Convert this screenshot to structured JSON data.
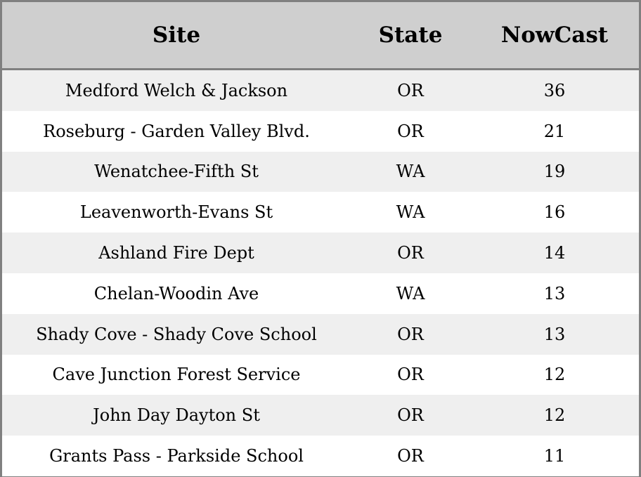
{
  "table": {
    "headers": [
      "Site",
      "State",
      "NowCast"
    ],
    "rows": [
      [
        "Medford Welch & Jackson",
        "OR",
        "36"
      ],
      [
        "Roseburg - Garden Valley Blvd.",
        "OR",
        "21"
      ],
      [
        "Wenatchee-Fifth St",
        "WA",
        "19"
      ],
      [
        "Leavenworth-Evans St",
        "WA",
        "16"
      ],
      [
        "Ashland Fire Dept",
        "OR",
        "14"
      ],
      [
        "Chelan-Woodin Ave",
        "WA",
        "13"
      ],
      [
        "Shady Cove - Shady Cove School",
        "OR",
        "13"
      ],
      [
        "Cave Junction Forest Service",
        "OR",
        "12"
      ],
      [
        "John Day Dayton St",
        "OR",
        "12"
      ],
      [
        "Grants Pass - Parkside School",
        "OR",
        "11"
      ]
    ]
  },
  "colors": {
    "header_bg": "#cfcfcf",
    "border": "#808080",
    "stripe": "#efefef"
  }
}
